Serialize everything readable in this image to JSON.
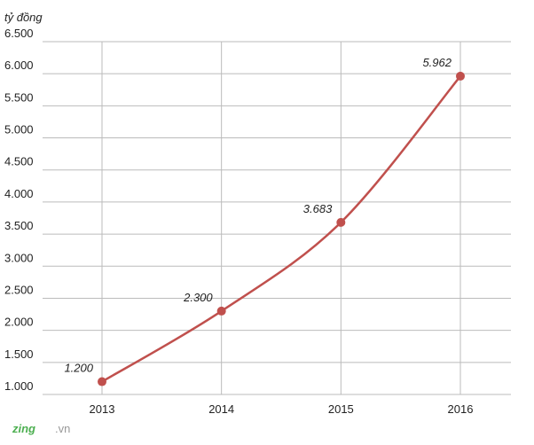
{
  "chart_data": {
    "type": "line",
    "y_label": "tỷ đồng",
    "categories": [
      "2013",
      "2014",
      "2015",
      "2016"
    ],
    "series": [
      {
        "name": null,
        "color": "#c0504d",
        "values": [
          1200,
          2300,
          3683,
          5962
        ],
        "value_labels": [
          "1.200",
          "2.300",
          "3.683",
          "5.962"
        ]
      }
    ],
    "ylim": [
      1000,
      6500
    ],
    "yticks": [
      {
        "value": 1000,
        "label": "1.000"
      },
      {
        "value": 1500,
        "label": "1.500"
      },
      {
        "value": 2000,
        "label": "2.000"
      },
      {
        "value": 2500,
        "label": "2.500"
      },
      {
        "value": 3000,
        "label": "3.000"
      },
      {
        "value": 3500,
        "label": "3.500"
      },
      {
        "value": 4000,
        "label": "4.000"
      },
      {
        "value": 4500,
        "label": "4.500"
      },
      {
        "value": 5000,
        "label": "5.000"
      },
      {
        "value": 5500,
        "label": "5.500"
      },
      {
        "value": 6000,
        "label": "6.000"
      },
      {
        "value": 6500,
        "label": "6.500"
      }
    ],
    "grid": true,
    "logo": {
      "brand": "zing",
      "domain": ".vn"
    }
  }
}
